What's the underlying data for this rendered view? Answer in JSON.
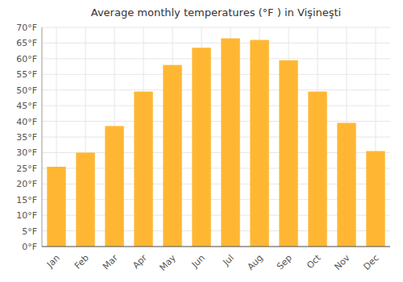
{
  "chart_data": {
    "type": "bar",
    "title": "Average monthly temperatures (°F ) in Vişineşti",
    "categories": [
      "Jan",
      "Feb",
      "Mar",
      "Apr",
      "May",
      "Jun",
      "Jul",
      "Aug",
      "Sep",
      "Oct",
      "Nov",
      "Dec"
    ],
    "values": [
      25.5,
      30.0,
      38.5,
      49.5,
      58.0,
      63.5,
      66.5,
      66.0,
      59.5,
      49.5,
      39.5,
      30.5
    ],
    "color": "#FFB733",
    "ylim": [
      0,
      70
    ],
    "yticks": [
      {
        "value": 0,
        "label": "0°F"
      },
      {
        "value": 5,
        "label": "5°F"
      },
      {
        "value": 10,
        "label": "10°F"
      },
      {
        "value": 15,
        "label": "15°F"
      },
      {
        "value": 20,
        "label": "20°F"
      },
      {
        "value": 25,
        "label": "25°F"
      },
      {
        "value": 30,
        "label": "30°F"
      },
      {
        "value": 35,
        "label": "35°F"
      },
      {
        "value": 40,
        "label": "40°F"
      },
      {
        "value": 45,
        "label": "45°F"
      },
      {
        "value": 50,
        "label": "50°F"
      },
      {
        "value": 55,
        "label": "55°F"
      },
      {
        "value": 60,
        "label": "60°F"
      },
      {
        "value": 65,
        "label": "65°F"
      },
      {
        "value": 70,
        "label": "70°F"
      }
    ],
    "grid": true
  }
}
